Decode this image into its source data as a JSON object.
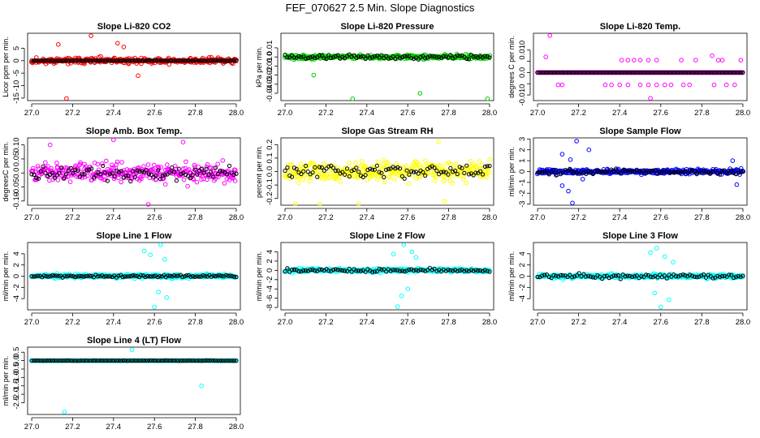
{
  "page_title": "FEF_070627  2.5 Min. Slope Diagnostics",
  "chart_data": [
    {
      "type": "scatter",
      "title": "Slope Li-820 CO2",
      "xlabel": "",
      "ylabel": "Licor ppm per min.",
      "xlim": [
        26.98,
        28.02
      ],
      "ylim": [
        -16,
        11
      ],
      "xticks": [
        27.0,
        27.2,
        27.4,
        27.6,
        27.8,
        28.0
      ],
      "yticks": [
        -15,
        -10,
        -5,
        0,
        5
      ],
      "ytick_labels": [
        "-15",
        "-10",
        "-5",
        "0",
        "5"
      ],
      "colors": {
        "main": "#ff0000",
        "ref": "#000000"
      },
      "spread": 2.0,
      "outliers": [
        [
          27.17,
          -15.2
        ],
        [
          27.29,
          10.0
        ],
        [
          27.42,
          7.0
        ],
        [
          27.45,
          5.5
        ],
        [
          27.52,
          -6.0
        ],
        [
          27.13,
          6.5
        ]
      ],
      "ref_spread": 0.15,
      "ref_mode": "line",
      "seed": 11
    },
    {
      "type": "scatter",
      "title": "Slope Li-820 Pressure",
      "xlabel": "",
      "ylabel": "kPa per min.",
      "xlim": [
        26.98,
        28.02
      ],
      "ylim": [
        -0.048,
        0.026
      ],
      "xticks": [
        27.0,
        27.2,
        27.4,
        27.6,
        27.8,
        28.0
      ],
      "yticks": [
        -0.04,
        -0.03,
        -0.02,
        -0.01,
        0.0,
        0.01
      ],
      "ytick_labels": [
        "-0.04",
        "-0.03",
        "-0.02",
        "-0.01",
        "0.0",
        "0.01"
      ],
      "colors": {
        "main": "#00cc00",
        "ref": "#000000"
      },
      "spread": 0.004,
      "outliers": [
        [
          27.33,
          -0.046
        ],
        [
          27.66,
          -0.04
        ],
        [
          27.14,
          -0.02
        ],
        [
          27.99,
          -0.046
        ]
      ],
      "ref_spread": 0.004,
      "ref_mode": "scatter",
      "seed": 22
    },
    {
      "type": "scatter",
      "title": "Slope Li-820 Temp.",
      "xlabel": "",
      "ylabel": "degrees C per min.",
      "xlim": [
        26.98,
        28.02
      ],
      "ylim": [
        -0.0125,
        0.0175
      ],
      "xticks": [
        27.0,
        27.2,
        27.4,
        27.6,
        27.8,
        28.0
      ],
      "yticks": [
        -0.01,
        -0.005,
        0.0,
        0.005,
        0.01
      ],
      "ytick_labels": [
        "-0.010",
        "",
        "0.0",
        "",
        "0.010"
      ],
      "colors": {
        "main": "#ff00ff",
        "ref": "#000000"
      },
      "spread": 0.0,
      "outliers": [
        [
          27.04,
          0.007
        ],
        [
          27.06,
          0.0165
        ],
        [
          27.1,
          -0.0055
        ],
        [
          27.12,
          -0.0055
        ],
        [
          27.33,
          -0.0055
        ],
        [
          27.36,
          -0.0055
        ],
        [
          27.4,
          -0.0055
        ],
        [
          27.44,
          -0.0055
        ],
        [
          27.5,
          -0.0055
        ],
        [
          27.54,
          -0.0055
        ],
        [
          27.58,
          -0.0055
        ],
        [
          27.62,
          -0.0055
        ],
        [
          27.65,
          -0.0055
        ],
        [
          27.71,
          -0.0055
        ],
        [
          27.74,
          -0.0055
        ],
        [
          27.86,
          -0.0055
        ],
        [
          27.92,
          -0.0055
        ],
        [
          27.96,
          -0.0055
        ],
        [
          27.55,
          -0.0115
        ],
        [
          27.85,
          0.0075
        ],
        [
          27.88,
          0.0055
        ],
        [
          27.9,
          0.0055
        ],
        [
          27.41,
          0.0055
        ],
        [
          27.44,
          0.0055
        ],
        [
          27.47,
          0.0055
        ],
        [
          27.5,
          0.0055
        ],
        [
          27.54,
          0.0055
        ],
        [
          27.58,
          0.0055
        ],
        [
          27.7,
          0.0055
        ],
        [
          27.77,
          0.0055
        ],
        [
          27.99,
          0.0055
        ]
      ],
      "ref_spread": 0.0,
      "ref_mode": "line",
      "seed": 33
    },
    {
      "type": "scatter",
      "title": "Slope Amb. Box Temp.",
      "xlabel": "",
      "ylabel": "degreesC per min.",
      "xlim": [
        26.98,
        28.02
      ],
      "ylim": [
        -0.115,
        0.125
      ],
      "xticks": [
        27.0,
        27.2,
        27.4,
        27.6,
        27.8,
        28.0
      ],
      "yticks": [
        -0.1,
        -0.05,
        0.0,
        0.05,
        0.1
      ],
      "ytick_labels": [
        "-0.10",
        "-0.05",
        "0.0",
        "0.05",
        "0.10"
      ],
      "colors": {
        "main": "#ff00ff",
        "ref": "#000000"
      },
      "spread": 0.055,
      "outliers": [
        [
          27.4,
          0.118
        ],
        [
          27.57,
          -0.112
        ],
        [
          27.09,
          0.1
        ],
        [
          27.74,
          0.11
        ]
      ],
      "ref_spread": 0.04,
      "ref_mode": "scatter",
      "seed": 44
    },
    {
      "type": "scatter",
      "title": "Slope Gas Stream RH",
      "xlabel": "",
      "ylabel": "percent per min.",
      "xlim": [
        26.98,
        28.02
      ],
      "ylim": [
        -0.25,
        0.25
      ],
      "xticks": [
        27.0,
        27.2,
        27.4,
        27.6,
        27.8,
        28.0
      ],
      "yticks": [
        -0.2,
        -0.1,
        0.0,
        0.1,
        0.2
      ],
      "ytick_labels": [
        "-0.2",
        "-0.1",
        "0.0",
        "0.1",
        "0.2"
      ],
      "colors": {
        "main": "#ffff00",
        "ref": "#000000"
      },
      "spread": 0.12,
      "outliers": [
        [
          27.05,
          -0.24
        ],
        [
          27.17,
          -0.24
        ],
        [
          27.36,
          -0.24
        ],
        [
          27.75,
          0.22
        ],
        [
          27.78,
          -0.22
        ]
      ],
      "ref_spread": 0.09,
      "ref_mode": "scatter",
      "seed": 55
    },
    {
      "type": "scatter",
      "title": "Slope Sample Flow",
      "xlabel": "",
      "ylabel": "ml/min per min.",
      "xlim": [
        26.98,
        28.02
      ],
      "ylim": [
        -3.1,
        3.1
      ],
      "xticks": [
        27.0,
        27.2,
        27.4,
        27.6,
        27.8,
        28.0
      ],
      "yticks": [
        -3,
        -2,
        -1,
        0,
        1,
        2,
        3
      ],
      "ytick_labels": [
        "-3",
        "-2",
        "-1",
        "0",
        "1",
        "2",
        "3"
      ],
      "colors": {
        "main": "#0000ff",
        "ref": "#000000"
      },
      "spread": 0.35,
      "outliers": [
        [
          27.19,
          2.8
        ],
        [
          27.22,
          -0.7
        ],
        [
          27.17,
          -2.9
        ],
        [
          27.15,
          -1.8
        ],
        [
          27.12,
          1.6
        ],
        [
          27.16,
          1.1
        ],
        [
          27.12,
          -1.3
        ],
        [
          27.97,
          -1.2
        ],
        [
          27.25,
          2.0
        ],
        [
          27.95,
          1.0
        ]
      ],
      "ref_spread": 0.4,
      "ref_mode": "scatter",
      "seed": 66
    },
    {
      "type": "scatter",
      "title": "Slope Line 1 Flow",
      "xlabel": "",
      "ylabel": "ml/min per min.",
      "xlim": [
        26.98,
        28.02
      ],
      "ylim": [
        -6,
        6
      ],
      "xticks": [
        27.0,
        27.2,
        27.4,
        27.6,
        27.8,
        28.0
      ],
      "yticks": [
        -4,
        -2,
        0,
        2,
        4
      ],
      "ytick_labels": [
        "-4",
        "-2",
        "0",
        "2",
        "4"
      ],
      "colors": {
        "main": "#00ffff",
        "ref": "#000000"
      },
      "spread": 0.6,
      "outliers": [
        [
          27.63,
          5.6
        ],
        [
          27.6,
          -5.5
        ],
        [
          27.55,
          4.5
        ],
        [
          27.66,
          -3.8
        ],
        [
          27.58,
          3.8
        ],
        [
          27.62,
          -2.8
        ],
        [
          27.65,
          3.0
        ]
      ],
      "ref_spread": 0.35,
      "ref_mode": "line",
      "seed": 77
    },
    {
      "type": "scatter",
      "title": "Slope Line 2 Flow",
      "xlabel": "",
      "ylabel": "ml/min per min.",
      "xlim": [
        26.98,
        28.02
      ],
      "ylim": [
        -8.5,
        6
      ],
      "xticks": [
        27.0,
        27.2,
        27.4,
        27.6,
        27.8,
        28.0
      ],
      "yticks": [
        -8,
        -6,
        -4,
        -2,
        0,
        2,
        4
      ],
      "ytick_labels": [
        "-8",
        "-6",
        "-4",
        "-2",
        "0",
        "2",
        "4"
      ],
      "colors": {
        "main": "#00ffff",
        "ref": "#000000"
      },
      "spread": 0.7,
      "outliers": [
        [
          27.58,
          5.5
        ],
        [
          27.55,
          -7.8
        ],
        [
          27.62,
          4.0
        ],
        [
          27.57,
          -5.5
        ],
        [
          27.6,
          -4.0
        ],
        [
          27.53,
          3.5
        ],
        [
          27.64,
          2.8
        ]
      ],
      "ref_spread": 0.6,
      "ref_mode": "scatter",
      "seed": 88
    },
    {
      "type": "scatter",
      "title": "Slope Line 3 Flow",
      "xlabel": "",
      "ylabel": "ml/min per min.",
      "xlim": [
        26.98,
        28.02
      ],
      "ylim": [
        -6,
        6
      ],
      "xticks": [
        27.0,
        27.2,
        27.4,
        27.6,
        27.8,
        28.0
      ],
      "yticks": [
        -4,
        -2,
        0,
        2,
        4
      ],
      "ytick_labels": [
        "-4",
        "-2",
        "0",
        "2",
        "4"
      ],
      "colors": {
        "main": "#00ffff",
        "ref": "#000000"
      },
      "spread": 0.7,
      "outliers": [
        [
          27.58,
          5.0
        ],
        [
          27.6,
          -5.5
        ],
        [
          27.55,
          4.2
        ],
        [
          27.64,
          -4.2
        ],
        [
          27.62,
          3.5
        ],
        [
          27.57,
          -3.0
        ],
        [
          27.66,
          2.5
        ]
      ],
      "ref_spread": 0.7,
      "ref_mode": "scatter",
      "seed": 99
    },
    {
      "type": "scatter",
      "title": "Slope Line 4 (LT) Flow",
      "xlabel": "",
      "ylabel": "ml/min per min.",
      "xlim": [
        26.98,
        28.02
      ],
      "ylim": [
        -3.2,
        0.8
      ],
      "xticks": [
        27.0,
        27.2,
        27.4,
        27.6,
        27.8,
        28.0
      ],
      "yticks": [
        -2.5,
        -2.0,
        -1.5,
        -1.0,
        -0.5,
        0.0,
        0.5
      ],
      "ytick_labels": [
        "-2.5",
        "-2.0",
        "-1.5",
        "-1.0",
        "-0.5",
        "0.0",
        "0.5"
      ],
      "colors": {
        "main": "#00ffff",
        "ref": "#000000"
      },
      "spread": 0.02,
      "outliers": [
        [
          27.16,
          -3.05
        ],
        [
          27.49,
          0.65
        ],
        [
          27.83,
          -1.5
        ]
      ],
      "ref_spread": 0.02,
      "ref_mode": "line",
      "seed": 111
    }
  ]
}
